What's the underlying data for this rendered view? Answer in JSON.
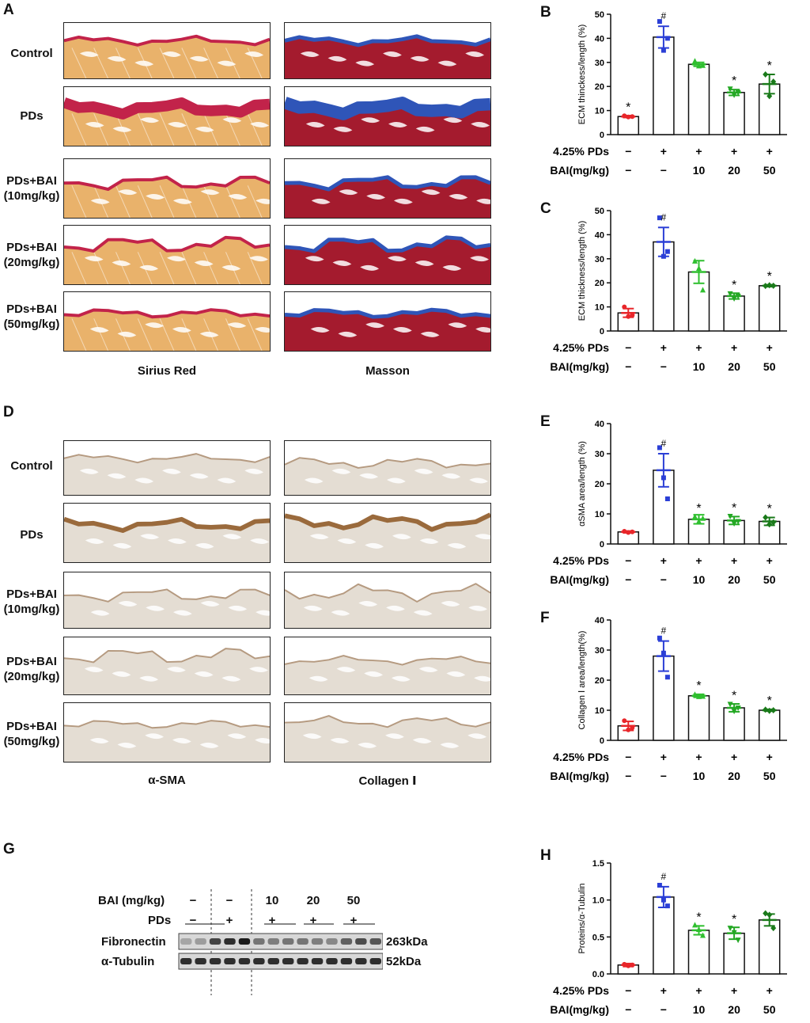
{
  "panels": {
    "A": "A",
    "B": "B",
    "C": "C",
    "D": "D",
    "E": "E",
    "F": "F",
    "G": "G",
    "H": "H"
  },
  "histology": {
    "rows": [
      {
        "line1": "Control",
        "line2": ""
      },
      {
        "line1": "PDs",
        "line2": ""
      },
      {
        "line1": "PDs+BAI",
        "line2": "(10mg/kg)"
      },
      {
        "line1": "PDs+BAI",
        "line2": "(20mg/kg)"
      },
      {
        "line1": "PDs+BAI",
        "line2": "(50mg/kg)"
      }
    ],
    "stains_top": [
      "Sirius Red",
      "Masson"
    ],
    "stains_bottom": [
      "α-SMA",
      "Collagen Ⅰ"
    ]
  },
  "conditions": {
    "row1_label": "4.25% PDs",
    "row2_label": "BAI(mg/kg)",
    "row1": [
      "−",
      "+",
      "+",
      "+",
      "+"
    ],
    "row2": [
      "−",
      "−",
      "10",
      "20",
      "50"
    ]
  },
  "colors": {
    "control": "#e8262a",
    "pds": "#2b3fd6",
    "bai10": "#2fbf2f",
    "bai20": "#24a824",
    "bai50": "#1a7a1a",
    "sirius_tissue": "#e9b26b",
    "sirius_ecm": "#c2234a",
    "masson_muscle": "#a41b2e",
    "masson_ecm": "#2f55b8",
    "ihc_tissue": "#e4ddd3",
    "ihc_stain": "#9a6a3c"
  },
  "chart_data": [
    {
      "id": "B",
      "type": "bar",
      "title": "",
      "xlabel": "",
      "ylabel": "ECM thinckess/length (%)",
      "categories": [
        "Control",
        "PDs",
        "PDs+BAI 10",
        "PDs+BAI 20",
        "PDs+BAI 50"
      ],
      "values": [
        7.5,
        40.5,
        29.2,
        17.5,
        21
      ],
      "errors": [
        0.4,
        4.5,
        0.8,
        1.2,
        4
      ],
      "points": [
        [
          7.8,
          7.3,
          7.5
        ],
        [
          47,
          35,
          40
        ],
        [
          30.5,
          28.5,
          28.7
        ],
        [
          19,
          16.5,
          17.5
        ],
        [
          25,
          16,
          22
        ]
      ],
      "markers": [
        "*",
        "#",
        "",
        "*",
        "*"
      ],
      "ylim": [
        0,
        50
      ],
      "yticks": [
        0,
        10,
        20,
        30,
        40,
        50
      ]
    },
    {
      "id": "C",
      "type": "bar",
      "title": "",
      "xlabel": "",
      "ylabel": "ECM thickness/length (%)",
      "categories": [
        "Control",
        "PDs",
        "PDs+BAI 10",
        "PDs+BAI 20",
        "PDs+BAI 50"
      ],
      "values": [
        7.5,
        37,
        24.5,
        14.5,
        18.8
      ],
      "errors": [
        1.8,
        6,
        4.7,
        1.2,
        0.4
      ],
      "points": [
        [
          10,
          6,
          6.5
        ],
        [
          47,
          31,
          33
        ],
        [
          29,
          26,
          17
        ],
        [
          15.5,
          13.5,
          14.5
        ],
        [
          18.7,
          19,
          18.8
        ]
      ],
      "markers": [
        "",
        "#",
        "",
        "*",
        "*"
      ],
      "ylim": [
        0,
        50
      ],
      "yticks": [
        0,
        10,
        20,
        30,
        40,
        50
      ]
    },
    {
      "id": "E",
      "type": "bar",
      "title": "",
      "xlabel": "",
      "ylabel": "αSMA area/length (%)",
      "categories": [
        "Control",
        "PDs",
        "PDs+BAI 10",
        "PDs+BAI 20",
        "PDs+BAI 50"
      ],
      "values": [
        4,
        24.5,
        8.2,
        7.8,
        7.5
      ],
      "errors": [
        0.3,
        5.5,
        1.5,
        1.3,
        1.3
      ],
      "points": [
        [
          4.2,
          3.8,
          4
        ],
        [
          32,
          22,
          15
        ],
        [
          9,
          7.5,
          8.5
        ],
        [
          9.2,
          6.8,
          7.5
        ],
        [
          8.8,
          6.5,
          7.2
        ]
      ],
      "markers": [
        "",
        "#",
        "*",
        "*",
        "*"
      ],
      "ylim": [
        0,
        40
      ],
      "yticks": [
        0,
        10,
        20,
        30,
        40
      ]
    },
    {
      "id": "F",
      "type": "bar",
      "title": "",
      "xlabel": "",
      "ylabel": "Collagen Ⅰ area/length(%)",
      "categories": [
        "Control",
        "PDs",
        "PDs+BAI 10",
        "PDs+BAI 20",
        "PDs+BAI 50"
      ],
      "values": [
        4.8,
        28,
        14.8,
        10.8,
        10
      ],
      "errors": [
        1.5,
        5,
        0.5,
        1.3,
        0.3
      ],
      "points": [
        [
          6.5,
          3.5,
          4.2
        ],
        [
          34,
          29,
          21
        ],
        [
          15.2,
          14.5,
          14.6
        ],
        [
          12,
          9.7,
          10.8
        ],
        [
          10.2,
          9.8,
          10
        ]
      ],
      "markers": [
        "",
        "#",
        "*",
        "*",
        "*"
      ],
      "ylim": [
        0,
        40
      ],
      "yticks": [
        0,
        10,
        20,
        30,
        40
      ]
    },
    {
      "id": "H",
      "type": "bar",
      "title": "",
      "xlabel": "",
      "ylabel": "Proteins/α-Tubulin",
      "categories": [
        "Control",
        "PDs",
        "PDs+BAI 10",
        "PDs+BAI 20",
        "PDs+BAI 50"
      ],
      "values": [
        0.12,
        1.04,
        0.59,
        0.55,
        0.73
      ],
      "errors": [
        0.02,
        0.14,
        0.06,
        0.08,
        0.08
      ],
      "points": [
        [
          0.13,
          0.11,
          0.12
        ],
        [
          1.2,
          1.0,
          0.92
        ],
        [
          0.66,
          0.6,
          0.52
        ],
        [
          0.62,
          0.56,
          0.46
        ],
        [
          0.82,
          0.8,
          0.62
        ]
      ],
      "markers": [
        "",
        "#",
        "*",
        "*",
        ""
      ],
      "ylim": [
        0,
        1.5
      ],
      "yticks": [
        0.0,
        0.5,
        1.0,
        1.5
      ],
      "tick_labels": [
        "0.0",
        "0.5",
        "1.0",
        "1.5"
      ]
    }
  ],
  "western": {
    "bai_label": "BAI (mg/kg)",
    "pds_label": "PDs",
    "bai_values": [
      "−",
      "−",
      "10",
      "20",
      "50"
    ],
    "pds_values": [
      "−",
      "+",
      "+",
      "+",
      "+"
    ],
    "bands": [
      {
        "name": "Fibronectin",
        "size": "263kDa"
      },
      {
        "name": "α-Tubulin",
        "size": "52kDa"
      }
    ],
    "fibronectin_intensity": [
      0.25,
      0.3,
      0.75,
      0.85,
      0.95,
      0.5,
      0.45,
      0.5,
      0.5,
      0.45,
      0.4,
      0.6,
      0.7,
      0.65
    ],
    "tubulin_intensity": [
      0.85,
      0.85,
      0.85,
      0.85,
      0.85,
      0.85,
      0.85,
      0.85,
      0.85,
      0.85,
      0.85,
      0.85,
      0.85,
      0.85
    ]
  }
}
